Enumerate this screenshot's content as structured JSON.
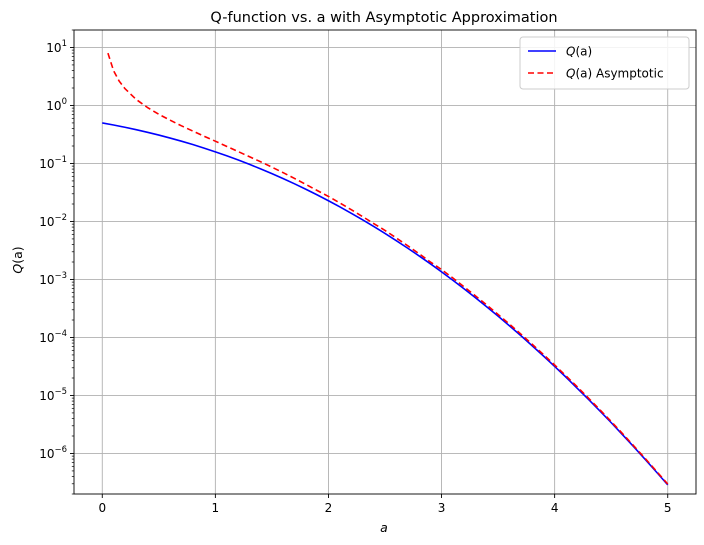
{
  "chart_data": {
    "type": "line",
    "title": "Q-function vs. a with Asymptotic Approximation",
    "xlabel": "a",
    "ylabel_base": "Q",
    "ylabel_arg": "(a)",
    "xlim": [
      -0.25,
      5.25
    ],
    "ylim": [
      2e-07,
      20
    ],
    "yscale": "log",
    "grid": true,
    "legend_position": "top-right",
    "x_ticks": [
      0,
      1,
      2,
      3,
      4,
      5
    ],
    "y_ticks": [
      {
        "value": 1e-06,
        "base": "10",
        "exp": "−6"
      },
      {
        "value": 1e-05,
        "base": "10",
        "exp": "−5"
      },
      {
        "value": 0.0001,
        "base": "10",
        "exp": "−4"
      },
      {
        "value": 0.001,
        "base": "10",
        "exp": "−3"
      },
      {
        "value": 0.01,
        "base": "10",
        "exp": "−2"
      },
      {
        "value": 0.1,
        "base": "10",
        "exp": "−1"
      },
      {
        "value": 1,
        "base": "10",
        "exp": "0"
      },
      {
        "value": 10,
        "base": "10",
        "exp": "1"
      }
    ],
    "series": [
      {
        "name_math": "Q(a)",
        "name_suffix": "",
        "color": "#0000ff",
        "dash": "",
        "x": [
          0,
          0.1,
          0.2,
          0.3,
          0.4,
          0.5,
          0.6,
          0.7,
          0.8,
          0.9,
          1.0,
          1.1,
          1.2,
          1.3,
          1.4,
          1.5,
          1.6,
          1.7,
          1.8,
          1.9,
          2.0,
          2.1,
          2.2,
          2.3,
          2.4,
          2.5,
          2.6,
          2.7,
          2.8,
          2.9,
          3.0,
          3.1,
          3.2,
          3.3,
          3.4,
          3.5,
          3.6,
          3.7,
          3.8,
          3.9,
          4.0,
          4.1,
          4.2,
          4.3,
          4.4,
          4.5,
          4.6,
          4.7,
          4.8,
          4.9,
          5.0
        ],
        "y": [
          0.5,
          0.4602,
          0.4207,
          0.3821,
          0.3446,
          0.3085,
          0.2743,
          0.242,
          0.2119,
          0.1841,
          0.1587,
          0.1357,
          0.1151,
          0.0968,
          0.0808,
          0.0668,
          0.0548,
          0.0446,
          0.0359,
          0.0287,
          0.02275,
          0.01786,
          0.0139,
          0.01072,
          0.0082,
          0.00621,
          0.00466,
          0.00347,
          0.00256,
          0.00187,
          0.00135,
          0.000968,
          0.000687,
          0.000483,
          0.000337,
          0.000233,
          0.000159,
          0.000108,
          7.23e-05,
          4.81e-05,
          3.17e-05,
          2.07e-05,
          1.33e-05,
          8.54e-06,
          5.41e-06,
          3.4e-06,
          2.11e-06,
          1.3e-06,
          7.93e-07,
          4.79e-07,
          2.87e-07
        ]
      },
      {
        "name_math": "Q(a)",
        "name_suffix": " Asymptotic",
        "color": "#ff0000",
        "dash": "6,3.5",
        "x": [
          0.05,
          0.1,
          0.15,
          0.2,
          0.3,
          0.4,
          0.5,
          0.6,
          0.7,
          0.8,
          0.9,
          1.0,
          1.1,
          1.2,
          1.3,
          1.4,
          1.5,
          1.6,
          1.7,
          1.8,
          1.9,
          2.0,
          2.1,
          2.2,
          2.3,
          2.4,
          2.5,
          2.6,
          2.7,
          2.8,
          2.9,
          3.0,
          3.1,
          3.2,
          3.3,
          3.4,
          3.5,
          3.6,
          3.7,
          3.8,
          3.9,
          4.0,
          4.1,
          4.2,
          4.3,
          4.4,
          4.5,
          4.6,
          4.7,
          4.8,
          4.9,
          5.0
        ],
        "y": [
          7.97,
          3.97,
          2.62,
          1.955,
          1.27,
          0.921,
          0.704,
          0.557,
          0.446,
          0.362,
          0.295,
          0.242,
          0.197,
          0.161,
          0.131,
          0.1071,
          0.0864,
          0.0693,
          0.0552,
          0.0436,
          0.0342,
          0.027,
          0.0209,
          0.016,
          0.0122,
          0.00921,
          0.00701,
          0.00519,
          0.00382,
          0.00279,
          0.00201,
          0.00148,
          0.00106,
          0.000745,
          0.000521,
          0.000362,
          0.000249,
          0.00017,
          0.000115,
          7.67e-05,
          5.1e-05,
          3.35e-05,
          2.18e-05,
          1.41e-05,
          8.99e-06,
          5.68e-06,
          3.56e-06,
          2.2e-06,
          1.35e-06,
          8.23e-07,
          4.96e-07,
          2.97e-07
        ]
      }
    ]
  }
}
